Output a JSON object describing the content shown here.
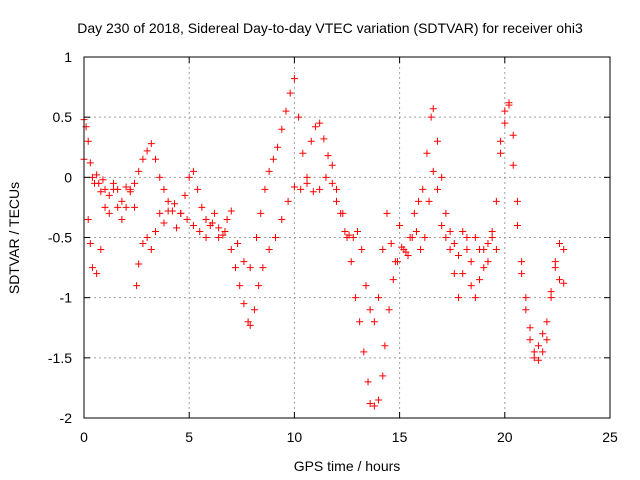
{
  "chart_data": {
    "type": "scatter",
    "title": "Day 230 of 2018, Sidereal Day-to-day VTEC variation (SDTVAR) for receiver ohi3",
    "xlabel": "GPS time / hours",
    "ylabel": "SDTVAR / TECUs",
    "xlim": [
      0,
      25
    ],
    "ylim": [
      -2,
      1
    ],
    "xticks": [
      "0",
      "5",
      "10",
      "15",
      "20",
      "25"
    ],
    "yticks": [
      "1",
      "0.5",
      "0",
      "-0.5",
      "-1",
      "-1.5",
      "-2"
    ],
    "grid": true,
    "marker": "+",
    "color": "#ff0000",
    "series": [
      {
        "name": "SDTVAR",
        "points": [
          [
            0.0,
            0.48
          ],
          [
            0.1,
            0.42
          ],
          [
            0.2,
            0.3
          ],
          [
            0.3,
            0.12
          ],
          [
            0.4,
            0.0
          ],
          [
            0.5,
            -0.05
          ],
          [
            0.6,
            0.02
          ],
          [
            0.7,
            -0.05
          ],
          [
            0.8,
            -0.12
          ],
          [
            0.9,
            -0.02
          ],
          [
            1.0,
            -0.1
          ],
          [
            1.2,
            -0.15
          ],
          [
            1.4,
            -0.05
          ],
          [
            1.6,
            -0.1
          ],
          [
            1.8,
            -0.2
          ],
          [
            2.0,
            -0.08
          ],
          [
            2.2,
            -0.12
          ],
          [
            2.4,
            -0.25
          ],
          [
            2.5,
            -0.9
          ],
          [
            2.6,
            -0.72
          ],
          [
            2.8,
            -0.55
          ],
          [
            3.0,
            -0.5
          ],
          [
            3.2,
            -0.6
          ],
          [
            3.4,
            -0.45
          ],
          [
            3.6,
            -0.3
          ],
          [
            3.8,
            -0.38
          ],
          [
            4.0,
            -0.28
          ],
          [
            4.3,
            -0.22
          ],
          [
            4.6,
            -0.3
          ],
          [
            4.9,
            -0.35
          ],
          [
            5.2,
            -0.4
          ],
          [
            5.5,
            -0.45
          ],
          [
            5.8,
            -0.5
          ],
          [
            6.1,
            -0.38
          ],
          [
            6.4,
            -0.5
          ],
          [
            6.7,
            -0.45
          ],
          [
            7.0,
            -0.6
          ],
          [
            7.2,
            -0.75
          ],
          [
            7.4,
            -0.9
          ],
          [
            7.6,
            -1.05
          ],
          [
            7.8,
            -1.2
          ],
          [
            7.9,
            -1.23
          ],
          [
            8.1,
            -1.1
          ],
          [
            8.3,
            -0.9
          ],
          [
            8.5,
            -0.75
          ],
          [
            8.8,
            -0.6
          ],
          [
            9.1,
            -0.5
          ],
          [
            9.4,
            -0.35
          ],
          [
            9.7,
            -0.2
          ],
          [
            10.0,
            -0.08
          ],
          [
            10.3,
            -0.1
          ],
          [
            10.6,
            -0.05
          ],
          [
            10.9,
            -0.12
          ],
          [
            11.2,
            -0.1
          ],
          [
            11.5,
            0.0
          ],
          [
            11.8,
            -0.05
          ],
          [
            12.0,
            -0.2
          ],
          [
            12.3,
            -0.3
          ],
          [
            12.5,
            -0.5
          ],
          [
            12.7,
            -0.7
          ],
          [
            12.9,
            -1.0
          ],
          [
            13.1,
            -1.2
          ],
          [
            13.3,
            -1.45
          ],
          [
            13.5,
            -1.7
          ],
          [
            13.6,
            -1.88
          ],
          [
            13.8,
            -1.9
          ],
          [
            14.0,
            -1.85
          ],
          [
            14.2,
            -1.65
          ],
          [
            14.3,
            -1.4
          ],
          [
            14.5,
            -1.1
          ],
          [
            14.7,
            -0.85
          ],
          [
            14.9,
            -0.7
          ],
          [
            15.1,
            -0.58
          ],
          [
            15.3,
            -0.62
          ],
          [
            15.5,
            -0.5
          ],
          [
            15.7,
            -0.3
          ],
          [
            15.9,
            -0.2
          ],
          [
            16.1,
            -0.1
          ],
          [
            16.3,
            0.2
          ],
          [
            16.5,
            0.5
          ],
          [
            16.6,
            0.57
          ],
          [
            16.8,
            0.3
          ],
          [
            17.0,
            0.0
          ],
          [
            17.2,
            -0.3
          ],
          [
            17.4,
            -0.6
          ],
          [
            17.6,
            -0.8
          ],
          [
            17.8,
            -1.0
          ],
          [
            18.0,
            -0.8
          ],
          [
            18.2,
            -0.6
          ],
          [
            18.4,
            -0.7
          ],
          [
            18.6,
            -0.5
          ],
          [
            18.8,
            -0.6
          ],
          [
            19.0,
            -0.75
          ],
          [
            19.2,
            -0.55
          ],
          [
            19.4,
            -0.45
          ],
          [
            19.6,
            -0.2
          ],
          [
            19.8,
            0.2
          ],
          [
            20.0,
            0.45
          ],
          [
            20.2,
            0.6
          ],
          [
            20.4,
            0.35
          ],
          [
            20.6,
            -0.2
          ],
          [
            20.8,
            -0.8
          ],
          [
            21.0,
            -1.1
          ],
          [
            21.2,
            -1.35
          ],
          [
            21.4,
            -1.5
          ],
          [
            21.6,
            -1.52
          ],
          [
            21.8,
            -1.45
          ],
          [
            22.0,
            -1.35
          ],
          [
            22.2,
            -1.0
          ],
          [
            22.4,
            -0.7
          ],
          [
            22.6,
            -0.55
          ],
          [
            22.8,
            -0.88
          ],
          [
            0.0,
            0.15
          ],
          [
            0.2,
            -0.35
          ],
          [
            0.3,
            -0.55
          ],
          [
            0.4,
            -0.75
          ],
          [
            0.6,
            -0.8
          ],
          [
            0.8,
            -0.6
          ],
          [
            1.0,
            -0.25
          ],
          [
            1.2,
            -0.3
          ],
          [
            1.4,
            -0.1
          ],
          [
            1.6,
            -0.25
          ],
          [
            1.8,
            -0.35
          ],
          [
            2.0,
            -0.25
          ],
          [
            2.2,
            -0.1
          ],
          [
            2.4,
            -0.05
          ],
          [
            2.6,
            0.05
          ],
          [
            2.8,
            0.15
          ],
          [
            3.0,
            0.22
          ],
          [
            3.2,
            0.28
          ],
          [
            3.4,
            0.15
          ],
          [
            3.6,
            0.0
          ],
          [
            3.8,
            -0.1
          ],
          [
            4.0,
            -0.2
          ],
          [
            4.2,
            -0.28
          ],
          [
            4.4,
            -0.42
          ],
          [
            4.6,
            -0.3
          ],
          [
            4.8,
            -0.15
          ],
          [
            5.0,
            0.0
          ],
          [
            5.2,
            0.05
          ],
          [
            5.4,
            -0.1
          ],
          [
            5.6,
            -0.25
          ],
          [
            5.8,
            -0.35
          ],
          [
            6.0,
            -0.4
          ],
          [
            6.2,
            -0.3
          ],
          [
            6.4,
            -0.42
          ],
          [
            6.6,
            -0.48
          ],
          [
            6.8,
            -0.35
          ],
          [
            7.0,
            -0.28
          ],
          [
            7.3,
            -0.55
          ],
          [
            7.6,
            -0.7
          ],
          [
            7.9,
            -0.75
          ],
          [
            8.2,
            -0.5
          ],
          [
            8.4,
            -0.3
          ],
          [
            8.6,
            -0.1
          ],
          [
            8.8,
            0.05
          ],
          [
            9.0,
            0.15
          ],
          [
            9.2,
            0.25
          ],
          [
            9.4,
            0.4
          ],
          [
            9.6,
            0.55
          ],
          [
            9.8,
            0.7
          ],
          [
            10.0,
            0.82
          ],
          [
            10.2,
            0.5
          ],
          [
            10.4,
            0.2
          ],
          [
            10.6,
            0.0
          ],
          [
            10.8,
            0.3
          ],
          [
            11.0,
            0.42
          ],
          [
            11.2,
            0.45
          ],
          [
            11.4,
            0.32
          ],
          [
            11.6,
            0.18
          ],
          [
            11.8,
            0.1
          ],
          [
            12.0,
            -0.1
          ],
          [
            12.2,
            -0.3
          ],
          [
            12.4,
            -0.45
          ],
          [
            12.6,
            -0.48
          ],
          [
            12.8,
            -0.5
          ],
          [
            13.0,
            -0.45
          ],
          [
            13.2,
            -0.6
          ],
          [
            13.4,
            -0.9
          ],
          [
            13.6,
            -1.1
          ],
          [
            13.8,
            -1.2
          ],
          [
            14.0,
            -1.0
          ],
          [
            14.2,
            -0.6
          ],
          [
            14.4,
            -0.3
          ],
          [
            14.6,
            -0.55
          ],
          [
            14.8,
            -0.7
          ],
          [
            15.0,
            -0.4
          ],
          [
            15.2,
            -0.6
          ],
          [
            15.4,
            -0.65
          ],
          [
            15.6,
            -0.5
          ],
          [
            15.8,
            -0.45
          ],
          [
            16.0,
            -0.6
          ],
          [
            16.2,
            -0.5
          ],
          [
            16.4,
            -0.2
          ],
          [
            16.6,
            0.05
          ],
          [
            16.8,
            -0.1
          ],
          [
            17.0,
            -0.4
          ],
          [
            17.2,
            -0.5
          ],
          [
            17.4,
            -0.45
          ],
          [
            17.6,
            -0.55
          ],
          [
            17.8,
            -0.65
          ],
          [
            18.0,
            -0.45
          ],
          [
            18.2,
            -0.5
          ],
          [
            18.4,
            -0.9
          ],
          [
            18.6,
            -1.0
          ],
          [
            18.8,
            -0.85
          ],
          [
            19.0,
            -0.6
          ],
          [
            19.2,
            -0.7
          ],
          [
            19.4,
            -0.5
          ],
          [
            19.6,
            -0.6
          ],
          [
            19.8,
            0.3
          ],
          [
            20.0,
            0.55
          ],
          [
            20.2,
            0.62
          ],
          [
            20.4,
            0.1
          ],
          [
            20.6,
            -0.4
          ],
          [
            20.8,
            -0.7
          ],
          [
            21.0,
            -1.0
          ],
          [
            21.2,
            -1.25
          ],
          [
            21.4,
            -1.45
          ],
          [
            21.6,
            -1.4
          ],
          [
            21.8,
            -1.3
          ],
          [
            22.0,
            -1.2
          ],
          [
            22.2,
            -0.95
          ],
          [
            22.4,
            -0.75
          ],
          [
            22.6,
            -0.85
          ],
          [
            22.8,
            -0.6
          ]
        ]
      }
    ]
  }
}
